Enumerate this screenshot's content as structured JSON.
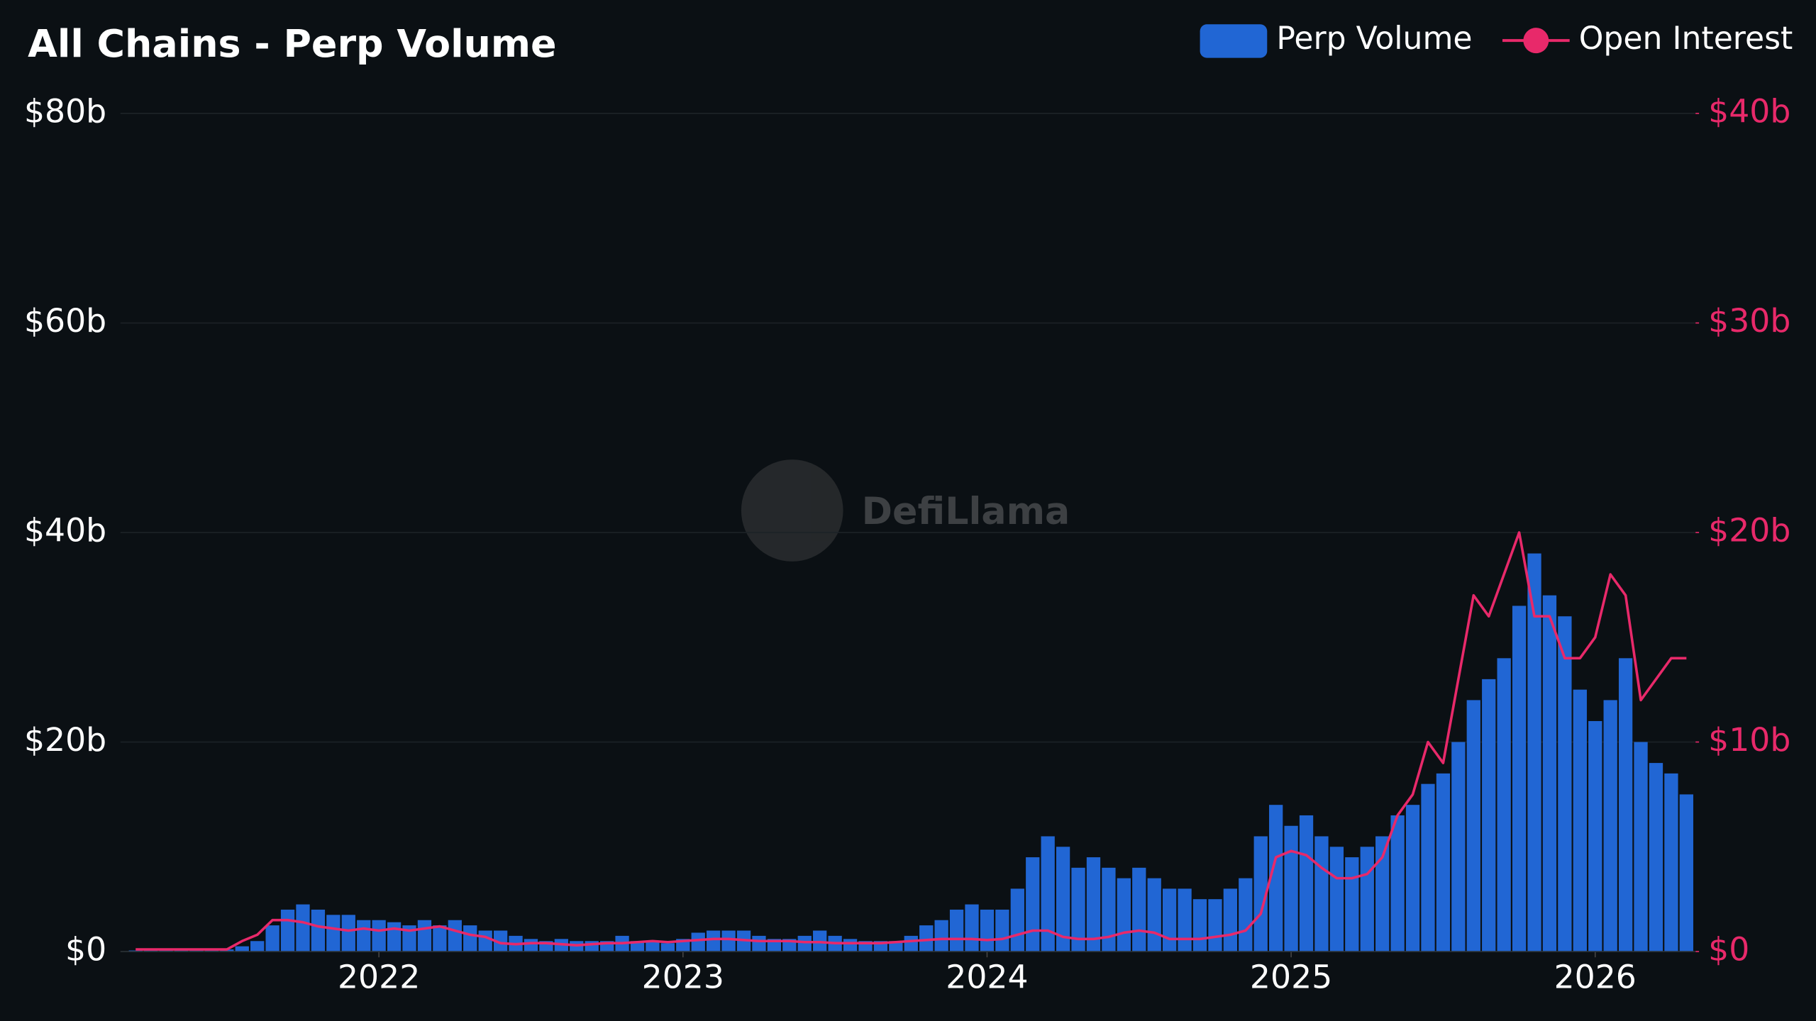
{
  "chart_data": {
    "type": "bar-line",
    "title": "All Chains - Perp Volume",
    "watermark": "DefiLlama",
    "x": [
      2021.2,
      2021.25,
      2021.3,
      2021.35,
      2021.4,
      2021.45,
      2021.5,
      2021.55,
      2021.6,
      2021.65,
      2021.7,
      2021.75,
      2021.8,
      2021.85,
      2021.9,
      2021.95,
      2022,
      2022.05,
      2022.1,
      2022.15,
      2022.2,
      2022.25,
      2022.3,
      2022.35,
      2022.4,
      2022.45,
      2022.5,
      2022.55,
      2022.6,
      2022.65,
      2022.7,
      2022.75,
      2022.8,
      2022.85,
      2022.9,
      2022.95,
      2023,
      2023.05,
      2023.1,
      2023.15,
      2023.2,
      2023.25,
      2023.3,
      2023.35,
      2023.4,
      2023.45,
      2023.5,
      2023.55,
      2023.6,
      2023.65,
      2023.7,
      2023.75,
      2023.8,
      2023.85,
      2023.9,
      2023.95,
      2024,
      2024.05,
      2024.1,
      2024.15,
      2024.2,
      2024.25,
      2024.3,
      2024.35,
      2024.4,
      2024.45,
      2024.5,
      2024.55,
      2024.6,
      2024.65,
      2024.7,
      2024.75,
      2024.8,
      2024.85,
      2024.9,
      2024.95,
      2025,
      2025.05,
      2025.1,
      2025.15,
      2025.2,
      2025.25,
      2025.3,
      2025.35,
      2025.4,
      2025.45,
      2025.5,
      2025.55,
      2025.6,
      2025.65,
      2025.7,
      2025.75,
      2025.8,
      2025.85,
      2025.9,
      2025.95,
      2026,
      2026.05,
      2026.1,
      2026.15,
      2026.2,
      2026.25,
      2026.3
    ],
    "series": [
      {
        "name": "Perp Volume",
        "color": "#2166d4",
        "values": [
          0.1,
          0.1,
          0.1,
          0.1,
          0.1,
          0.1,
          0.2,
          0.5,
          1,
          2.5,
          4,
          4.5,
          4,
          3.5,
          3.5,
          3,
          3,
          2.8,
          2.5,
          3,
          2.5,
          3,
          2.5,
          2,
          2,
          1.5,
          1.2,
          1,
          1.2,
          1,
          1,
          1,
          1.5,
          1,
          1,
          0.8,
          1.2,
          1.8,
          2,
          2,
          2,
          1.5,
          1.2,
          1.2,
          1.5,
          2,
          1.5,
          1.2,
          1,
          1,
          1,
          1.5,
          2.5,
          3,
          4,
          4.5,
          4,
          4,
          6,
          9,
          11,
          10,
          8,
          9,
          8,
          7,
          8,
          7,
          6,
          6,
          5,
          5,
          6,
          7,
          11,
          14,
          12,
          13,
          11,
          10,
          9,
          10,
          11,
          13,
          14,
          16,
          17,
          20,
          24,
          26,
          28,
          33,
          38,
          34,
          32,
          25,
          22,
          24,
          28,
          20,
          18,
          17,
          15
        ]
      },
      {
        "name": "Open Interest",
        "color": "#e8296a",
        "axis": "y2",
        "values": [
          0.1,
          0.1,
          0.1,
          0.1,
          0.1,
          0.1,
          0.1,
          0.5,
          0.8,
          1.5,
          1.5,
          1.4,
          1.2,
          1.1,
          1.0,
          1.1,
          1.0,
          1.1,
          1.0,
          1.1,
          1.2,
          1.0,
          0.8,
          0.7,
          0.4,
          0.35,
          0.4,
          0.4,
          0.35,
          0.3,
          0.35,
          0.4,
          0.4,
          0.45,
          0.5,
          0.45,
          0.5,
          0.55,
          0.6,
          0.6,
          0.55,
          0.5,
          0.5,
          0.5,
          0.45,
          0.45,
          0.4,
          0.4,
          0.4,
          0.4,
          0.45,
          0.5,
          0.55,
          0.6,
          0.6,
          0.6,
          0.55,
          0.6,
          0.8,
          1.0,
          1.0,
          0.7,
          0.6,
          0.6,
          0.7,
          0.9,
          1.0,
          0.9,
          0.6,
          0.6,
          0.6,
          0.7,
          0.8,
          1.0,
          1.8,
          4.5,
          4.8,
          4.6,
          4.0,
          3.5,
          3.5,
          3.7,
          4.5,
          6.5,
          7.5,
          10,
          9,
          13,
          17,
          16,
          18,
          20,
          16,
          16,
          14,
          14,
          15,
          18,
          17,
          12,
          13,
          14,
          14
        ]
      }
    ],
    "xlim": [
      2021.15,
      2026.33
    ],
    "xticks": [
      2022,
      2023,
      2024,
      2025,
      2026
    ],
    "ylim": [
      0,
      80
    ],
    "yticks": [
      {
        "value": 0,
        "label": "$0"
      },
      {
        "value": 20,
        "label": "$20b"
      },
      {
        "value": 40,
        "label": "$40b"
      },
      {
        "value": 60,
        "label": "$60b"
      },
      {
        "value": 80,
        "label": "$80b"
      }
    ],
    "y2lim": [
      0,
      40
    ],
    "y2ticks": [
      {
        "value": 0,
        "label": "$0"
      },
      {
        "value": 10,
        "label": "$10b"
      },
      {
        "value": 20,
        "label": "$20b"
      },
      {
        "value": 30,
        "label": "$30b"
      },
      {
        "value": 40,
        "label": "$40b"
      }
    ],
    "grid": true,
    "legend": "top-right"
  }
}
